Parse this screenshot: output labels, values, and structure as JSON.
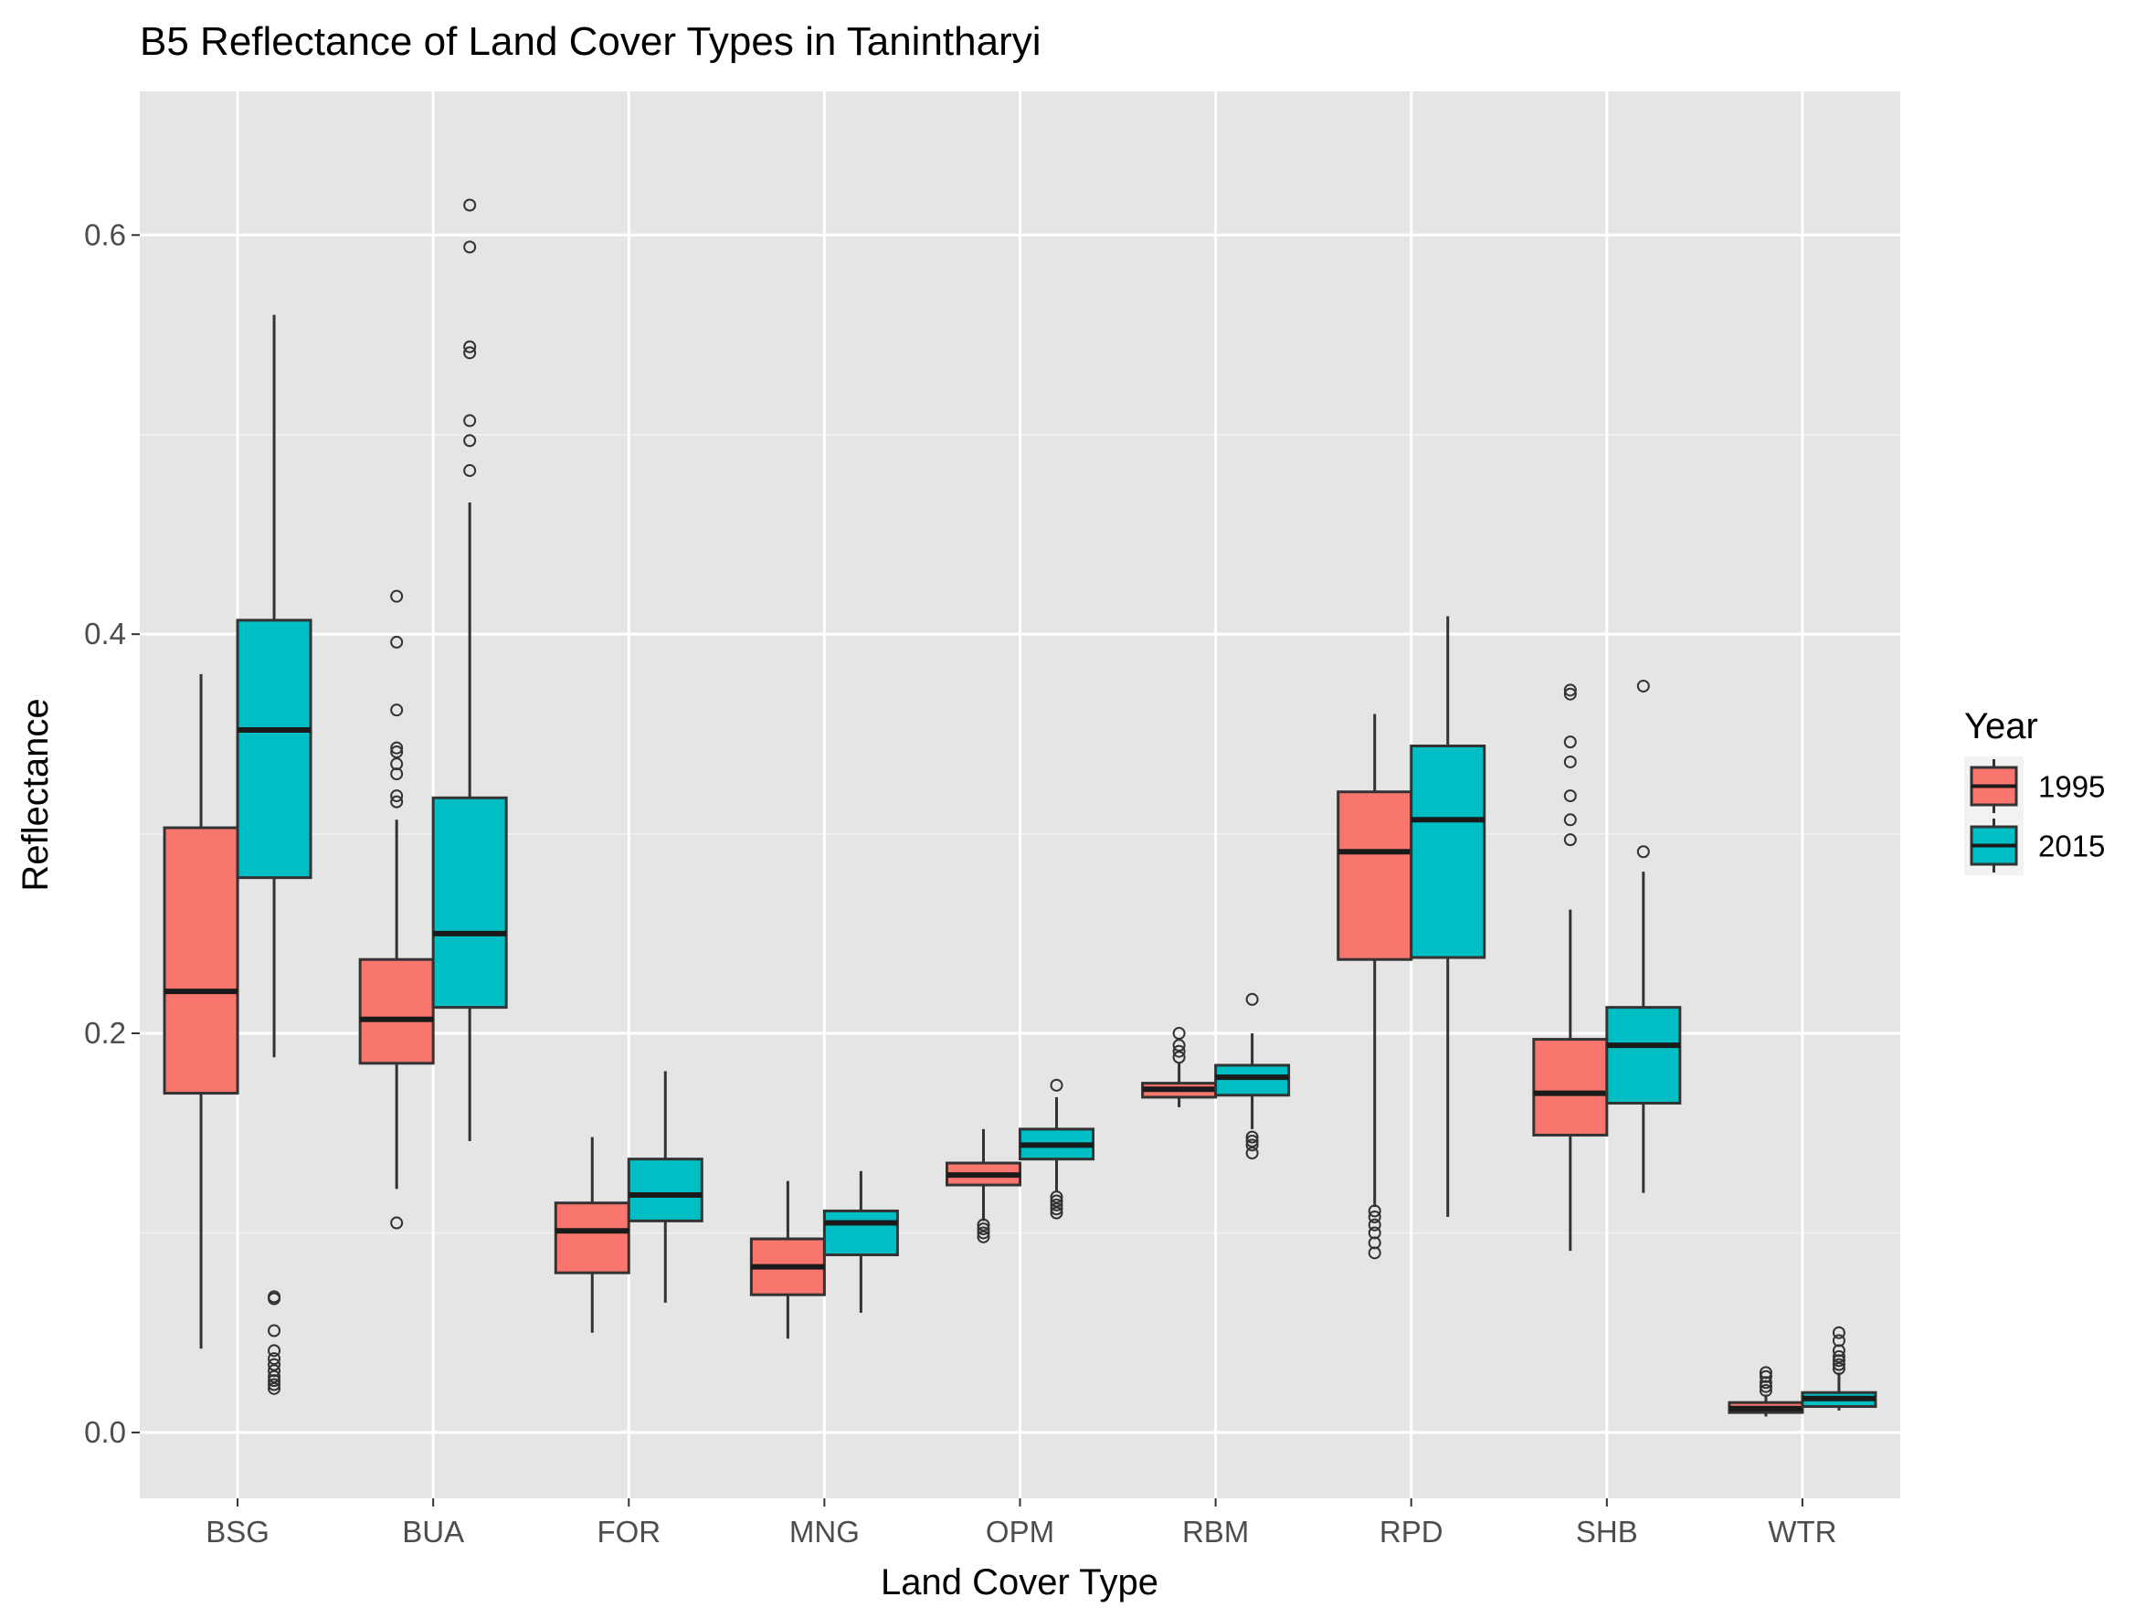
{
  "chart_data": {
    "type": "boxplot",
    "title": "B5 Reflectance of Land Cover Types in Tanintharyi",
    "xlabel": "Land Cover Type",
    "ylabel": "Reflectance",
    "ylim": [
      -0.033,
      0.672
    ],
    "yticks": [
      "0.0",
      "0.2",
      "0.4",
      "0.6"
    ],
    "ytick_values": [
      0.0,
      0.2,
      0.4,
      0.6
    ],
    "grid": true,
    "legend": {
      "title": "Year",
      "position": "right"
    },
    "categories": [
      "BSG",
      "BUA",
      "FOR",
      "MNG",
      "OPM",
      "RBM",
      "RPD",
      "SHB",
      "WTR"
    ],
    "series": [
      {
        "name": "1995",
        "color": "#F8766D",
        "boxes": [
          {
            "min": 0.042,
            "q1": 0.17,
            "median": 0.221,
            "q3": 0.303,
            "max": 0.38,
            "outliers": []
          },
          {
            "min": 0.122,
            "q1": 0.185,
            "median": 0.207,
            "q3": 0.237,
            "max": 0.307,
            "outliers": [
              0.105,
              0.316,
              0.319,
              0.33,
              0.335,
              0.341,
              0.343,
              0.362,
              0.396,
              0.419
            ]
          },
          {
            "min": 0.05,
            "q1": 0.08,
            "median": 0.101,
            "q3": 0.115,
            "max": 0.148,
            "outliers": []
          },
          {
            "min": 0.047,
            "q1": 0.069,
            "median": 0.083,
            "q3": 0.097,
            "max": 0.126,
            "outliers": []
          },
          {
            "min": 0.106,
            "q1": 0.124,
            "median": 0.129,
            "q3": 0.135,
            "max": 0.152,
            "outliers": [
              0.098,
              0.1,
              0.102,
              0.104
            ]
          },
          {
            "min": 0.163,
            "q1": 0.168,
            "median": 0.172,
            "q3": 0.175,
            "max": 0.185,
            "outliers": [
              0.188,
              0.191,
              0.194,
              0.2
            ]
          },
          {
            "min": 0.113,
            "q1": 0.237,
            "median": 0.291,
            "q3": 0.321,
            "max": 0.36,
            "outliers": [
              0.09,
              0.095,
              0.1,
              0.104,
              0.108,
              0.111
            ]
          },
          {
            "min": 0.091,
            "q1": 0.149,
            "median": 0.17,
            "q3": 0.197,
            "max": 0.262,
            "outliers": [
              0.297,
              0.307,
              0.319,
              0.336,
              0.346,
              0.37,
              0.372
            ]
          },
          {
            "min": 0.008,
            "q1": 0.01,
            "median": 0.012,
            "q3": 0.015,
            "max": 0.019,
            "outliers": [
              0.021,
              0.023,
              0.025,
              0.028,
              0.03
            ]
          }
        ]
      },
      {
        "name": "2015",
        "color": "#00BFC4",
        "boxes": [
          {
            "min": 0.188,
            "q1": 0.278,
            "median": 0.352,
            "q3": 0.407,
            "max": 0.56,
            "outliers": [
              0.022,
              0.024,
              0.026,
              0.028,
              0.031,
              0.034,
              0.037,
              0.041,
              0.051,
              0.067,
              0.068
            ]
          },
          {
            "min": 0.146,
            "q1": 0.213,
            "median": 0.25,
            "q3": 0.318,
            "max": 0.466,
            "outliers": [
              0.482,
              0.497,
              0.507,
              0.541,
              0.544,
              0.594,
              0.615
            ]
          },
          {
            "min": 0.065,
            "q1": 0.106,
            "median": 0.119,
            "q3": 0.137,
            "max": 0.181,
            "outliers": []
          },
          {
            "min": 0.06,
            "q1": 0.089,
            "median": 0.105,
            "q3": 0.111,
            "max": 0.131,
            "outliers": []
          },
          {
            "min": 0.121,
            "q1": 0.137,
            "median": 0.144,
            "q3": 0.152,
            "max": 0.168,
            "outliers": [
              0.11,
              0.112,
              0.114,
              0.116,
              0.118,
              0.174
            ]
          },
          {
            "min": 0.152,
            "q1": 0.169,
            "median": 0.178,
            "q3": 0.184,
            "max": 0.2,
            "outliers": [
              0.14,
              0.144,
              0.146,
              0.148,
              0.217
            ]
          },
          {
            "min": 0.108,
            "q1": 0.238,
            "median": 0.307,
            "q3": 0.344,
            "max": 0.409,
            "outliers": []
          },
          {
            "min": 0.12,
            "q1": 0.165,
            "median": 0.194,
            "q3": 0.213,
            "max": 0.281,
            "outliers": [
              0.291,
              0.374
            ]
          },
          {
            "min": 0.011,
            "q1": 0.013,
            "median": 0.017,
            "q3": 0.02,
            "max": 0.03,
            "outliers": [
              0.032,
              0.034,
              0.036,
              0.038,
              0.041,
              0.046,
              0.05
            ]
          }
        ]
      }
    ]
  }
}
